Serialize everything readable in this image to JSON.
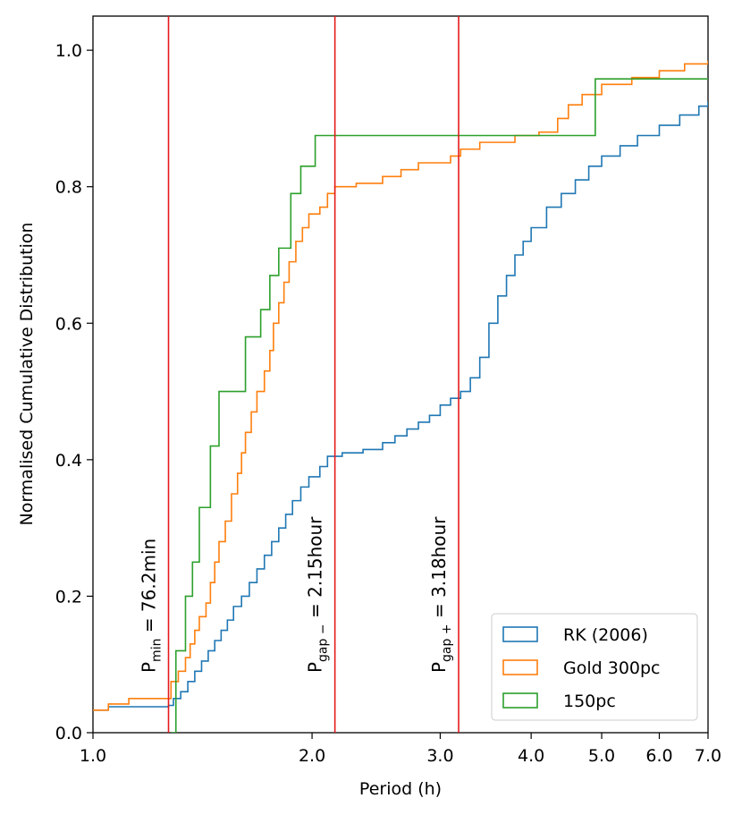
{
  "chart_data": {
    "type": "line",
    "step": true,
    "xscale": "log",
    "xlabel": "Period (h)",
    "ylabel": "Normalised Cumulative Distribution",
    "xlim": [
      1.0,
      7.0
    ],
    "ylim": [
      0.0,
      1.05
    ],
    "xticks": [
      {
        "value": 1.0,
        "label": "1.0"
      },
      {
        "value": 2.0,
        "label": "2.0"
      },
      {
        "value": 3.0,
        "label": "3.0"
      },
      {
        "value": 4.0,
        "label": "4.0"
      },
      {
        "value": 5.0,
        "label": "5.0"
      },
      {
        "value": 6.0,
        "label": "6.0"
      },
      {
        "value": 7.0,
        "label": "7.0"
      }
    ],
    "yticks": [
      {
        "value": 0.0,
        "label": "0.0"
      },
      {
        "value": 0.2,
        "label": "0.2"
      },
      {
        "value": 0.4,
        "label": "0.4"
      },
      {
        "value": 0.6,
        "label": "0.6"
      },
      {
        "value": 0.8,
        "label": "0.8"
      },
      {
        "value": 1.0,
        "label": "1.0"
      }
    ],
    "vlines": [
      {
        "x": 1.27,
        "color": "#e41a1c",
        "label_main": "P",
        "label_sub": "min",
        "label_rest": " = 76.2min"
      },
      {
        "x": 2.15,
        "color": "#e41a1c",
        "label_main": "P",
        "label_sub": "gap −",
        "label_rest": " = 2.15hour"
      },
      {
        "x": 3.18,
        "color": "#e41a1c",
        "label_main": "P",
        "label_sub": "gap +",
        "label_rest": " = 3.18hour"
      }
    ],
    "legend_position": "bottom-right",
    "series": [
      {
        "name": "RK (2006)",
        "color": "#1f77b4",
        "points": [
          [
            1.0,
            0.033
          ],
          [
            1.05,
            0.038
          ],
          [
            1.27,
            0.04
          ],
          [
            1.29,
            0.05
          ],
          [
            1.32,
            0.06
          ],
          [
            1.35,
            0.075
          ],
          [
            1.38,
            0.09
          ],
          [
            1.41,
            0.105
          ],
          [
            1.44,
            0.12
          ],
          [
            1.47,
            0.135
          ],
          [
            1.5,
            0.15
          ],
          [
            1.53,
            0.165
          ],
          [
            1.56,
            0.185
          ],
          [
            1.6,
            0.2
          ],
          [
            1.64,
            0.22
          ],
          [
            1.68,
            0.24
          ],
          [
            1.72,
            0.26
          ],
          [
            1.76,
            0.28
          ],
          [
            1.8,
            0.3
          ],
          [
            1.84,
            0.32
          ],
          [
            1.88,
            0.34
          ],
          [
            1.93,
            0.36
          ],
          [
            1.98,
            0.375
          ],
          [
            2.05,
            0.39
          ],
          [
            2.1,
            0.405
          ],
          [
            2.2,
            0.41
          ],
          [
            2.35,
            0.415
          ],
          [
            2.5,
            0.425
          ],
          [
            2.6,
            0.435
          ],
          [
            2.7,
            0.445
          ],
          [
            2.8,
            0.455
          ],
          [
            2.9,
            0.465
          ],
          [
            3.0,
            0.48
          ],
          [
            3.1,
            0.49
          ],
          [
            3.2,
            0.5
          ],
          [
            3.3,
            0.52
          ],
          [
            3.4,
            0.55
          ],
          [
            3.5,
            0.6
          ],
          [
            3.6,
            0.64
          ],
          [
            3.7,
            0.67
          ],
          [
            3.8,
            0.7
          ],
          [
            3.9,
            0.72
          ],
          [
            4.0,
            0.74
          ],
          [
            4.2,
            0.77
          ],
          [
            4.4,
            0.79
          ],
          [
            4.6,
            0.81
          ],
          [
            4.8,
            0.83
          ],
          [
            5.0,
            0.845
          ],
          [
            5.3,
            0.86
          ],
          [
            5.6,
            0.875
          ],
          [
            6.0,
            0.89
          ],
          [
            6.4,
            0.905
          ],
          [
            6.8,
            0.918
          ],
          [
            7.0,
            0.925
          ]
        ]
      },
      {
        "name": "Gold 300pc",
        "color": "#ff7f0e",
        "points": [
          [
            1.0,
            0.033
          ],
          [
            1.05,
            0.042
          ],
          [
            1.12,
            0.05
          ],
          [
            1.28,
            0.075
          ],
          [
            1.31,
            0.09
          ],
          [
            1.34,
            0.11
          ],
          [
            1.36,
            0.13
          ],
          [
            1.38,
            0.15
          ],
          [
            1.4,
            0.17
          ],
          [
            1.43,
            0.19
          ],
          [
            1.45,
            0.22
          ],
          [
            1.47,
            0.25
          ],
          [
            1.49,
            0.28
          ],
          [
            1.52,
            0.31
          ],
          [
            1.55,
            0.35
          ],
          [
            1.58,
            0.38
          ],
          [
            1.6,
            0.41
          ],
          [
            1.62,
            0.44
          ],
          [
            1.65,
            0.47
          ],
          [
            1.68,
            0.5
          ],
          [
            1.72,
            0.53
          ],
          [
            1.75,
            0.56
          ],
          [
            1.77,
            0.6
          ],
          [
            1.8,
            0.63
          ],
          [
            1.83,
            0.66
          ],
          [
            1.86,
            0.69
          ],
          [
            1.9,
            0.72
          ],
          [
            1.94,
            0.74
          ],
          [
            1.98,
            0.76
          ],
          [
            2.05,
            0.77
          ],
          [
            2.1,
            0.79
          ],
          [
            2.15,
            0.8
          ],
          [
            2.3,
            0.805
          ],
          [
            2.5,
            0.815
          ],
          [
            2.65,
            0.825
          ],
          [
            2.8,
            0.835
          ],
          [
            3.1,
            0.845
          ],
          [
            3.2,
            0.855
          ],
          [
            3.4,
            0.865
          ],
          [
            3.8,
            0.875
          ],
          [
            4.1,
            0.88
          ],
          [
            4.35,
            0.9
          ],
          [
            4.5,
            0.92
          ],
          [
            4.7,
            0.935
          ],
          [
            5.0,
            0.95
          ],
          [
            5.5,
            0.96
          ],
          [
            6.0,
            0.97
          ],
          [
            6.5,
            0.98
          ],
          [
            7.0,
            0.985
          ]
        ]
      },
      {
        "name": "150pc",
        "color": "#2ca02c",
        "points": [
          [
            1.28,
            0.0
          ],
          [
            1.3,
            0.12
          ],
          [
            1.34,
            0.2
          ],
          [
            1.37,
            0.25
          ],
          [
            1.4,
            0.33
          ],
          [
            1.45,
            0.42
          ],
          [
            1.49,
            0.5
          ],
          [
            1.62,
            0.58
          ],
          [
            1.7,
            0.62
          ],
          [
            1.75,
            0.67
          ],
          [
            1.8,
            0.71
          ],
          [
            1.87,
            0.79
          ],
          [
            1.93,
            0.83
          ],
          [
            2.02,
            0.875
          ],
          [
            4.6,
            0.875
          ],
          [
            4.9,
            0.958
          ],
          [
            7.0,
            0.958
          ]
        ]
      }
    ]
  }
}
